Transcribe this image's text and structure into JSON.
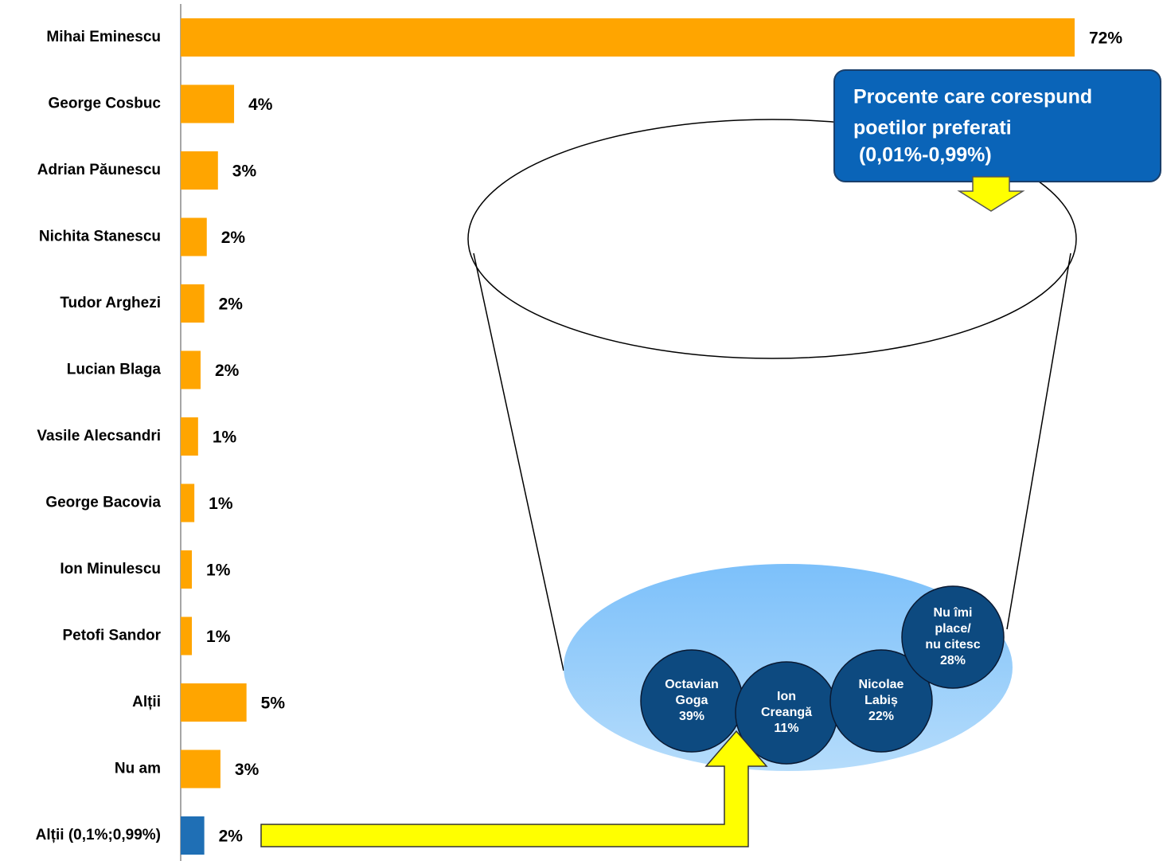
{
  "chart_data": {
    "type": "hbar",
    "categories": [
      "Mihai Eminescu",
      "George Cosbuc",
      "Adrian Păunescu",
      "Nichita Stanescu",
      "Tudor Arghezi",
      "Lucian Blaga",
      "Vasile Alecsandri",
      "George Bacovia",
      "Ion Minulescu",
      "Petofi Sandor",
      "Alții",
      "Nu am",
      "Alții (0,1%;0,99%)"
    ],
    "values": [
      72,
      4.3,
      3,
      2.1,
      1.9,
      1.6,
      1.4,
      1.1,
      0.9,
      0.9,
      5.3,
      3.2,
      1.9
    ],
    "value_labels": [
      "72%",
      "4%",
      "3%",
      "2%",
      "2%",
      "2%",
      "1%",
      "1%",
      "1%",
      "1%",
      "5%",
      "3%",
      "2%"
    ],
    "colors": [
      "#FFA500",
      "#FFA500",
      "#FFA500",
      "#FFA500",
      "#FFA500",
      "#FFA500",
      "#FFA500",
      "#FFA500",
      "#FFA500",
      "#FFA500",
      "#FFA500",
      "#FFA500",
      "#1F6FB5"
    ],
    "xlim": [
      0,
      72
    ]
  },
  "callout": {
    "lines": [
      "Procente care corespund",
      "poetilor preferati",
      " (0,01%-0,99%)"
    ]
  },
  "breakdown": {
    "names": [
      [
        "Octavian",
        "Goga"
      ],
      [
        "Ion",
        "Creangă"
      ],
      [
        "Nicolae",
        "Labiș"
      ],
      [
        "Nu îmi",
        "place/",
        "nu citesc"
      ]
    ],
    "values": [
      39,
      11,
      22,
      28
    ],
    "value_labels": [
      "39%",
      "11%",
      "22%",
      "28%"
    ]
  }
}
